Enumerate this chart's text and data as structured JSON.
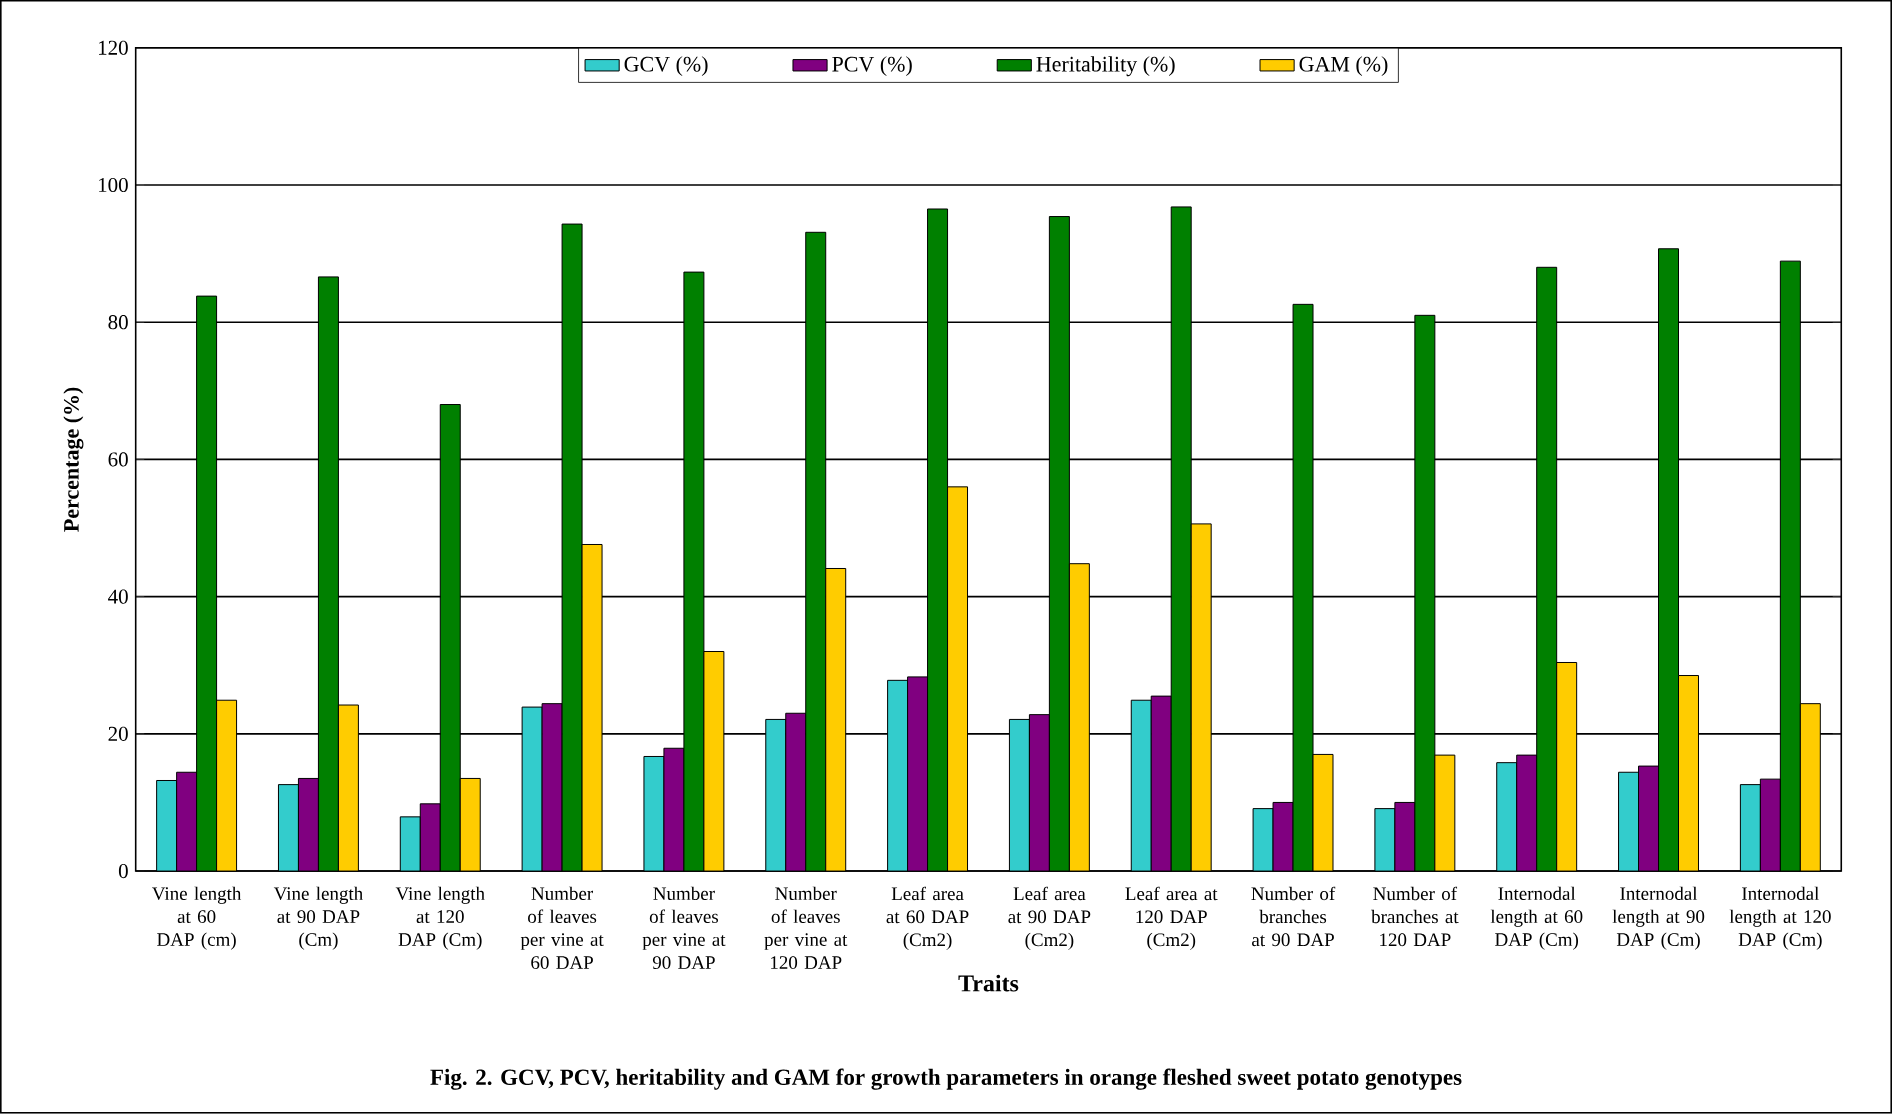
{
  "chart_data": {
    "type": "bar",
    "xlabel": "Traits",
    "ylabel": "Percentage (%)",
    "annotations": [
      "Fig. 2. GCV, PCV, heritability and GAM for growth parameters in orange fleshed sweet potato genotypes"
    ],
    "categories": [
      "Vine length at 60 DAP (cm)",
      "Vine length at 90 DAP (Cm)",
      "Vine length at 120 DAP (Cm)",
      "Number of leaves per vine at 60 DAP",
      "Number of leaves per vine at 90 DAP",
      "Number of leaves per vine at 120 DAP",
      "Leaf area at 60 DAP (Cm2)",
      "Leaf area at 90 DAP (Cm2)",
      "Leaf area at 120 DAP (Cm2)",
      "Number of branches at 90 DAP",
      "Number of branches at 120 DAP",
      "Internodal length at 60 DAP (Cm)",
      "Internodal length at 90 DAP (Cm)",
      "Internodal length at 120 DAP (Cm)"
    ],
    "series": [
      {
        "name": "GCV (%)",
        "color": "#33cccc",
        "values": [
          13.2,
          12.6,
          7.9,
          23.9,
          16.7,
          22.1,
          27.8,
          22.1,
          24.9,
          9.1,
          9.1,
          15.8,
          14.4,
          12.6
        ]
      },
      {
        "name": "PCV (%)",
        "color": "#800080",
        "values": [
          14.4,
          13.5,
          9.8,
          24.4,
          17.9,
          23.0,
          28.3,
          22.8,
          25.5,
          10.0,
          10.0,
          16.9,
          15.3,
          13.4
        ]
      },
      {
        "name": "Heritability (%)",
        "color": "#008000",
        "values": [
          83.8,
          86.6,
          68.0,
          94.3,
          87.3,
          93.1,
          96.5,
          95.4,
          96.8,
          82.6,
          81.0,
          88.0,
          90.7,
          88.9
        ]
      },
      {
        "name": "GAM (%)",
        "color": "#ffcc00",
        "values": [
          24.9,
          24.2,
          13.5,
          47.6,
          32.0,
          44.1,
          56.0,
          44.8,
          50.6,
          17.0,
          16.9,
          30.4,
          28.5,
          24.4
        ]
      }
    ],
    "ylim": [
      0,
      120
    ],
    "yticks": [
      0,
      20,
      40,
      60,
      80,
      100,
      120
    ],
    "grid": "y",
    "legend": "top"
  }
}
